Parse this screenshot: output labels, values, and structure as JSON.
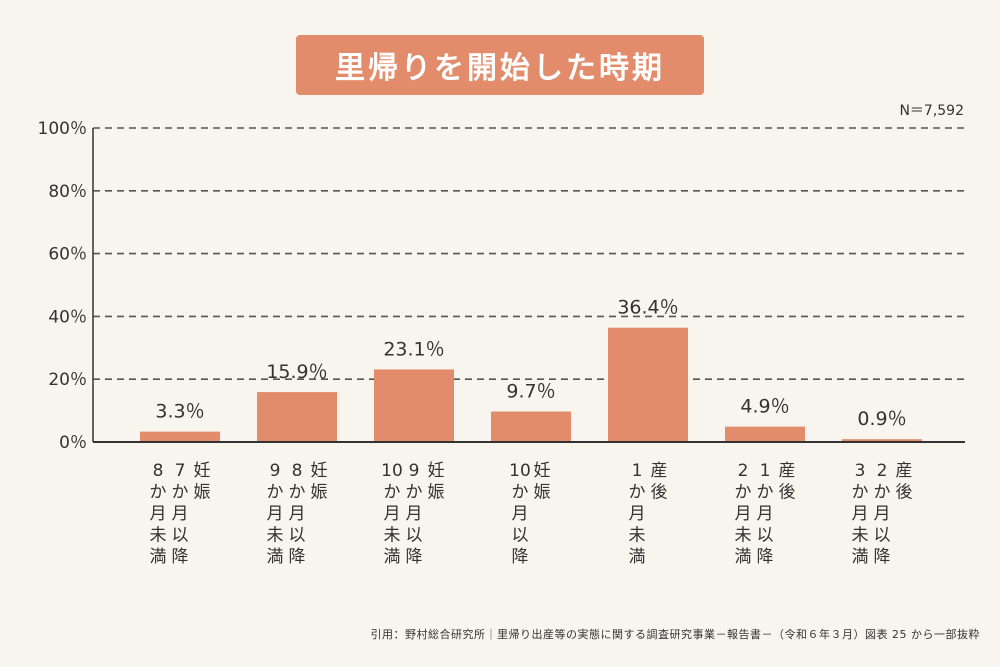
{
  "title": "里帰りを開始した時期",
  "n_label": "N＝7,592",
  "source": "引用：野村総合研究所｜里帰り出産等の実態に関する調査研究事業－報告書－（令和６年３月）図表 25 から一部抜粋",
  "colors": {
    "bar": "#e38c6b",
    "title_bg": "#e38c6b",
    "background": "#f8f5ef",
    "grid": "#555555"
  },
  "chart_data": {
    "type": "bar",
    "title": "里帰りを開始した時期",
    "categories": [
      [
        "妊娠",
        "7か月以降",
        "8か月未満"
      ],
      [
        "妊娠",
        "8か月以降",
        "9か月未満"
      ],
      [
        "妊娠",
        "9か月以降",
        "10か月未満"
      ],
      [
        "妊娠",
        "10か月以降"
      ],
      [
        "産後",
        "1か月未満"
      ],
      [
        "産後",
        "1か月以降",
        "2か月未満"
      ],
      [
        "産後",
        "2か月以降",
        "3か月未満"
      ]
    ],
    "values": [
      3.3,
      15.9,
      23.1,
      9.7,
      36.4,
      4.9,
      0.9
    ],
    "value_labels": [
      "3.3％",
      "15.9％",
      "23.1％",
      "9.7％",
      "36.4％",
      "4.9％",
      "0.9％"
    ],
    "y_ticks": [
      0,
      20,
      40,
      60,
      80,
      100
    ],
    "y_tick_labels": [
      "0％",
      "20％",
      "40％",
      "60％",
      "80％",
      "100％"
    ],
    "ylim": [
      0,
      100
    ],
    "grid": true,
    "legend": "none"
  }
}
